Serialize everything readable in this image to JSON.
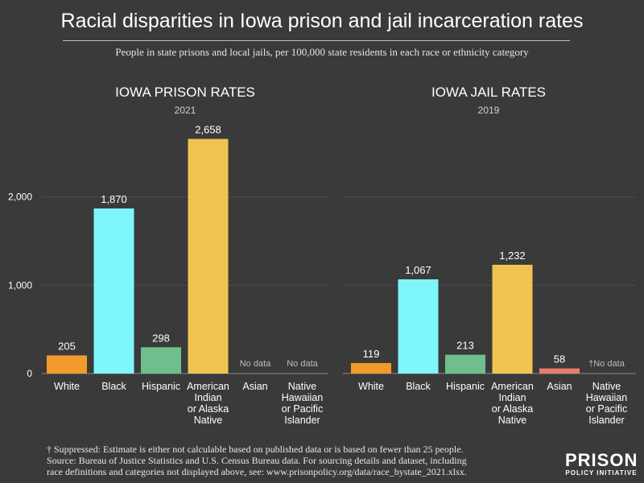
{
  "title": "Racial disparities in Iowa prison and jail incarceration rates",
  "subtitle": "People in state prisons and local jails, per 100,000 state residents in each race or ethnicity category",
  "footer": {
    "note": "† Suppressed: Estimate is either not calculable based on published data or is based on fewer than 25 people.",
    "source1": "Source: Bureau of Justice Statistics and U.S. Census Bureau data. For sourcing details and dataset, including",
    "source2": "race definitions and categories not displayed above, see: www.prisonpolicy.org/data/race_bystate_2021.xlsx."
  },
  "logo": {
    "word": "PRISON",
    "sub": "POLICY INITIATIVE"
  },
  "colors": {
    "White": "#f39a2e",
    "Black": "#7ff6fb",
    "Hispanic": "#6fbf8d",
    "American Indian or Alaska Native": "#f1c44f",
    "Asian": "#e87c6a",
    "Native Hawaiian or Pacific Islander": "#9c9c9c"
  },
  "chart_data": [
    {
      "type": "bar",
      "title": "IOWA PRISON RATES",
      "subtitle": "2021",
      "categories": [
        "White",
        "Black",
        "Hispanic",
        "American Indian or Alaska Native",
        "Asian",
        "Native Hawaiian or Pacific Islander"
      ],
      "category_lines": [
        [
          "White"
        ],
        [
          "Black"
        ],
        [
          "Hispanic"
        ],
        [
          "American",
          "Indian",
          "or Alaska",
          "Native"
        ],
        [
          "Asian"
        ],
        [
          "Native",
          "Hawaiian",
          "or Pacific",
          "Islander"
        ]
      ],
      "values": [
        205,
        1870,
        298,
        2658,
        null,
        null
      ],
      "value_labels": [
        "205",
        "1,870",
        "298",
        "2,658",
        "No data",
        "No data"
      ],
      "ylim": [
        0,
        2800
      ],
      "yticks": [
        0,
        1000,
        2000
      ],
      "ytick_labels": [
        "0",
        "1,000",
        "2,000"
      ],
      "xlabel": "",
      "ylabel": ""
    },
    {
      "type": "bar",
      "title": "IOWA JAIL RATES",
      "subtitle": "2019",
      "categories": [
        "White",
        "Black",
        "Hispanic",
        "American Indian or Alaska Native",
        "Asian",
        "Native Hawaiian or Pacific Islander"
      ],
      "category_lines": [
        [
          "White"
        ],
        [
          "Black"
        ],
        [
          "Hispanic"
        ],
        [
          "American",
          "Indian",
          "or Alaska",
          "Native"
        ],
        [
          "Asian"
        ],
        [
          "Native",
          "Hawaiian",
          "or Pacific",
          "Islander"
        ]
      ],
      "values": [
        119,
        1067,
        213,
        1232,
        58,
        null
      ],
      "value_labels": [
        "119",
        "1,067",
        "213",
        "1,232",
        "58",
        "†No data"
      ],
      "ylim": [
        0,
        2800
      ],
      "xlabel": "",
      "ylabel": ""
    }
  ]
}
